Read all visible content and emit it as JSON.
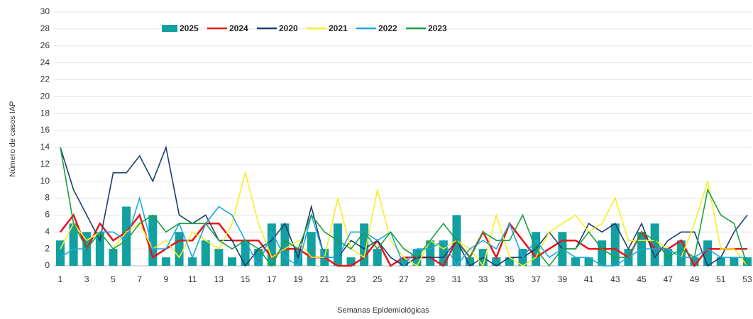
{
  "chart_data": {
    "type": "bar_line",
    "x_label": "Semanas Epidemiológicas",
    "y_label": "Número de casos IAP",
    "categories": [
      1,
      null,
      3,
      null,
      5,
      null,
      7,
      null,
      9,
      null,
      11,
      null,
      13,
      null,
      15,
      null,
      17,
      null,
      19,
      null,
      21,
      null,
      23,
      null,
      25,
      null,
      27,
      null,
      29,
      null,
      31,
      null,
      33,
      null,
      35,
      null,
      37,
      null,
      39,
      null,
      41,
      null,
      43,
      null,
      45,
      null,
      47,
      null,
      49,
      null,
      51,
      null,
      53
    ],
    "ylim": [
      0,
      30
    ],
    "yticks": [
      0,
      2,
      4,
      6,
      8,
      10,
      12,
      14,
      16,
      18,
      20,
      22,
      24,
      26,
      28,
      30
    ],
    "grid": true,
    "series": [
      {
        "name": "2025",
        "kind": "bar",
        "color": "#12a0a0",
        "values": [
          3,
          5,
          4,
          4,
          2,
          7,
          0,
          6,
          1,
          4,
          1,
          3,
          2,
          1,
          3,
          2,
          5,
          5,
          2,
          4,
          2,
          5,
          1,
          5,
          2,
          0,
          1,
          2,
          3,
          3,
          6,
          1,
          2,
          1,
          1,
          2,
          4,
          0,
          4,
          1,
          1,
          3,
          5,
          2,
          4,
          5,
          2,
          3,
          1,
          3,
          1,
          1,
          1
        ]
      },
      {
        "name": "2024",
        "kind": "line",
        "color": "#e8141b",
        "values": [
          4,
          6,
          2,
          5,
          3,
          4,
          6,
          1,
          2,
          3,
          3,
          5,
          5,
          3,
          3,
          3,
          1,
          2,
          2,
          1,
          1,
          0,
          0,
          1,
          3,
          0,
          1,
          1,
          1,
          0,
          3,
          1,
          4,
          1,
          5,
          3,
          1,
          2,
          3,
          3,
          2,
          2,
          2,
          1,
          4,
          2,
          2,
          3,
          0,
          2,
          2,
          2,
          2
        ]
      },
      {
        "name": "2020",
        "kind": "line",
        "color": "#1f3d6e",
        "values": [
          14,
          9,
          6,
          3,
          11,
          11,
          13,
          10,
          14,
          6,
          5,
          6,
          3,
          3,
          0,
          2,
          3,
          5,
          1,
          7,
          1,
          1,
          3,
          2,
          3,
          1,
          0,
          1,
          1,
          1,
          3,
          0,
          1,
          0,
          1,
          1,
          2,
          4,
          2,
          2,
          5,
          4,
          5,
          2,
          5,
          1,
          3,
          4,
          4,
          0,
          1,
          4,
          6
        ]
      },
      {
        "name": "2021",
        "kind": "line",
        "color": "#f5f020",
        "values": [
          2,
          5,
          3,
          4,
          2,
          4,
          5,
          2,
          3,
          1,
          4,
          3,
          2,
          5,
          11,
          5,
          1,
          2,
          3,
          1,
          1,
          8,
          2,
          1,
          9,
          3,
          1,
          0,
          3,
          2,
          3,
          2,
          0,
          6,
          1,
          0,
          1,
          4,
          5,
          6,
          4,
          5,
          8,
          3,
          3,
          3,
          2,
          1,
          5,
          10,
          2,
          2,
          0
        ]
      },
      {
        "name": "2022",
        "kind": "line",
        "color": "#1ea7e1",
        "values": [
          1,
          2,
          2,
          4,
          4,
          3,
          8,
          2,
          2,
          5,
          1,
          5,
          7,
          6,
          3,
          0,
          4,
          1,
          0,
          6,
          1,
          1,
          4,
          4,
          3,
          4,
          0,
          2,
          2,
          3,
          0,
          2,
          3,
          2,
          5,
          1,
          3,
          1,
          2,
          1,
          1,
          0,
          0,
          1,
          2,
          2,
          2,
          1,
          1,
          2,
          1,
          1,
          1
        ]
      },
      {
        "name": "2023",
        "kind": "line",
        "color": "#19a040",
        "values": [
          14,
          5,
          2,
          4,
          2,
          3,
          5,
          6,
          4,
          5,
          5,
          5,
          3,
          2,
          3,
          2,
          0,
          3,
          2,
          6,
          4,
          3,
          2,
          4,
          2,
          4,
          2,
          1,
          3,
          5,
          3,
          1,
          4,
          3,
          3,
          6,
          2,
          0,
          2,
          2,
          4,
          2,
          1,
          1,
          4,
          3,
          1,
          2,
          1,
          9,
          6,
          5,
          0
        ]
      }
    ]
  }
}
